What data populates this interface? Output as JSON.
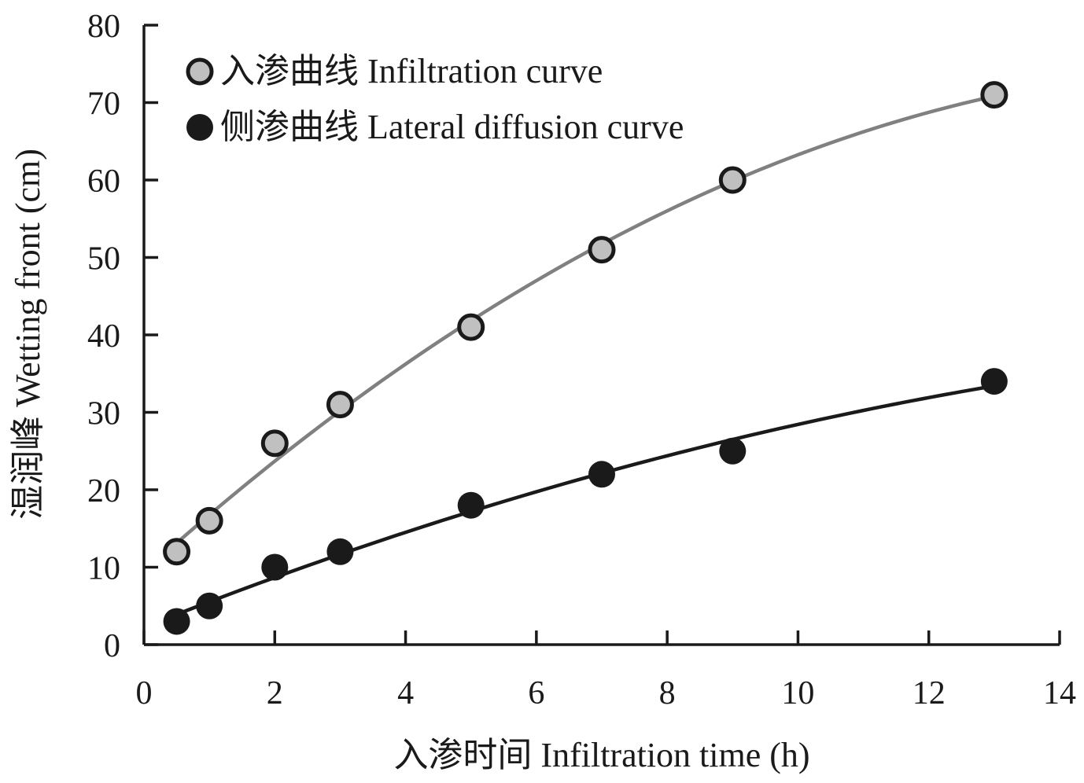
{
  "chart_data": {
    "type": "scatter",
    "title": "",
    "xlabel": "入渗时间 Infiltration time (h)",
    "ylabel": "湿润峰 Wetting front (cm)",
    "xlim": [
      0,
      14
    ],
    "ylim": [
      0,
      80
    ],
    "xticks": [
      0,
      2,
      4,
      6,
      8,
      10,
      12,
      14
    ],
    "yticks": [
      0,
      10,
      20,
      30,
      40,
      50,
      60,
      70,
      80
    ],
    "xtick_labels": [
      "0",
      "2",
      "4",
      "6",
      "8",
      "10",
      "12",
      "14"
    ],
    "ytick_labels": [
      "0",
      "10",
      "20",
      "30",
      "40",
      "50",
      "60",
      "70",
      "80"
    ],
    "grid": false,
    "legend_position": "top-left",
    "series": [
      {
        "name": "入渗曲线 Infiltration curve",
        "marker_color": "#c0c0c0",
        "line_color": "#808080",
        "x": [
          0.5,
          1,
          2,
          3,
          5,
          7,
          9,
          13
        ],
        "y": [
          12,
          16,
          26,
          31,
          41,
          51,
          60,
          71
        ],
        "trend": "polynomial"
      },
      {
        "name": "侧渗曲线 Lateral diffusion curve",
        "marker_color": "#1a1a1a",
        "line_color": "#1a1a1a",
        "x": [
          0.5,
          1,
          2,
          3,
          5,
          7,
          9,
          13
        ],
        "y": [
          3,
          5,
          10,
          12,
          18,
          22,
          25,
          34
        ],
        "trend": "polynomial"
      }
    ]
  }
}
